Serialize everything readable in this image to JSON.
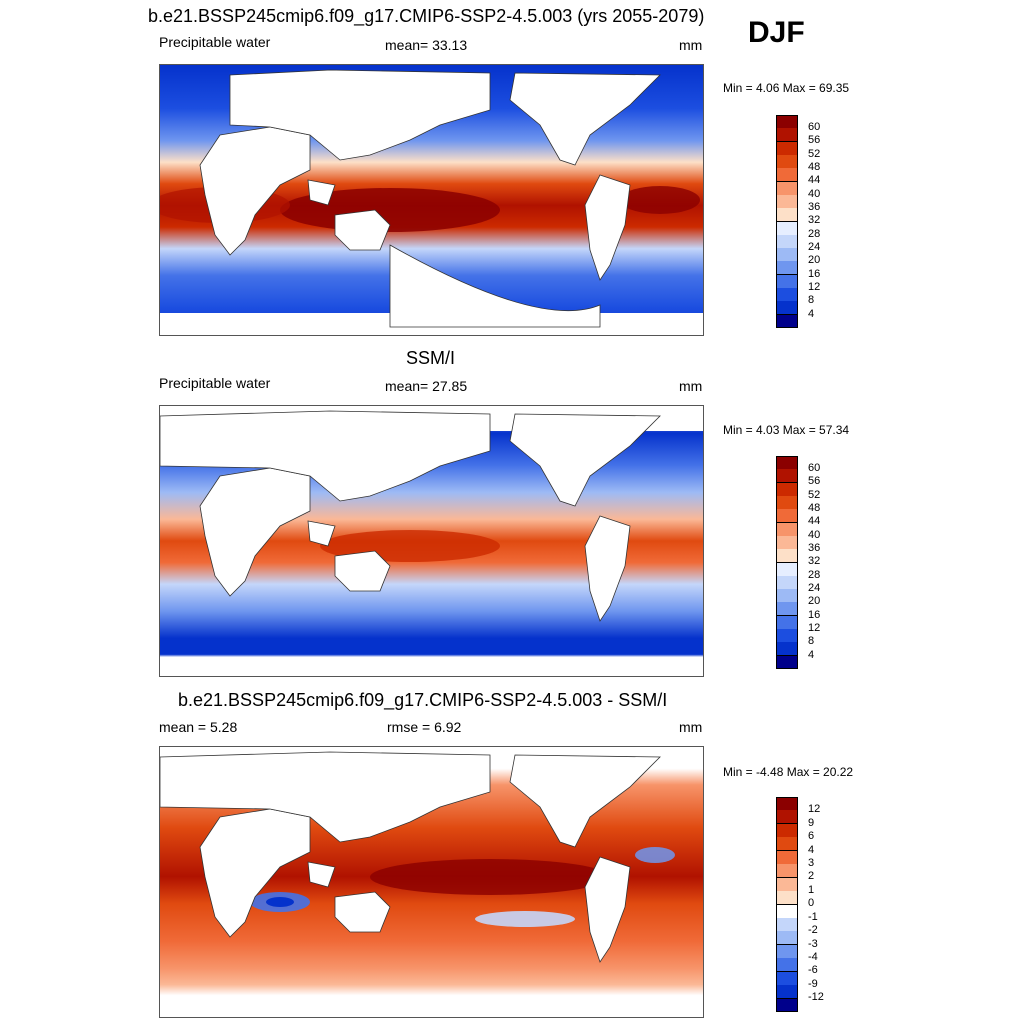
{
  "season": "DJF",
  "panels": [
    {
      "title": "b.e21.BSSP245cmip6.f09_g17.CMIP6-SSP2-4.5.003 (yrs 2055-2079)",
      "left_label": "Precipitable water",
      "center_label": "mean=  33.13",
      "units": "mm",
      "minmax": "Min =   4.06 Max =  69.35",
      "colorbar_labels": [
        "60",
        "56",
        "52",
        "48",
        "44",
        "40",
        "36",
        "32",
        "28",
        "24",
        "20",
        "16",
        "12",
        "8",
        "4"
      ]
    },
    {
      "title": "SSM/I",
      "left_label": "Precipitable water",
      "center_label": "mean=  27.85",
      "units": "mm",
      "minmax": "Min =   4.03 Max =  57.34",
      "colorbar_labels": [
        "60",
        "56",
        "52",
        "48",
        "44",
        "40",
        "36",
        "32",
        "28",
        "24",
        "20",
        "16",
        "12",
        "8",
        "4"
      ]
    },
    {
      "title": "b.e21.BSSP245cmip6.f09_g17.CMIP6-SSP2-4.5.003 - SSM/I",
      "left_label": "mean =   5.28",
      "center_label": "rmse =   6.92",
      "units": "mm",
      "minmax": "Min =  -4.48 Max =  20.22",
      "colorbar_labels": [
        "12",
        "9",
        "6",
        "4",
        "3",
        "2",
        "1",
        "0",
        "-1",
        "-2",
        "-3",
        "-4",
        "-6",
        "-9",
        "-12"
      ]
    }
  ],
  "colors": {
    "abs_scale": [
      "#8b0000",
      "#b01200",
      "#cc2a00",
      "#e04a10",
      "#f06a38",
      "#f7946a",
      "#fbb896",
      "#fde0c8",
      "#e6eeff",
      "#c4d6fa",
      "#9dbaf5",
      "#6f96ef",
      "#4472e8",
      "#1c4ee0",
      "#0532cc",
      "#00008b"
    ],
    "diff_scale": [
      "#8b0000",
      "#b01200",
      "#cc2a00",
      "#e04a10",
      "#f06a38",
      "#f7946a",
      "#fbb896",
      "#fde0c8",
      "#ffffff",
      "#e6eeff",
      "#c4d6fa",
      "#9dbaf5",
      "#6f96ef",
      "#4472e8",
      "#1c4ee0",
      "#0532cc",
      "#00008b"
    ]
  }
}
